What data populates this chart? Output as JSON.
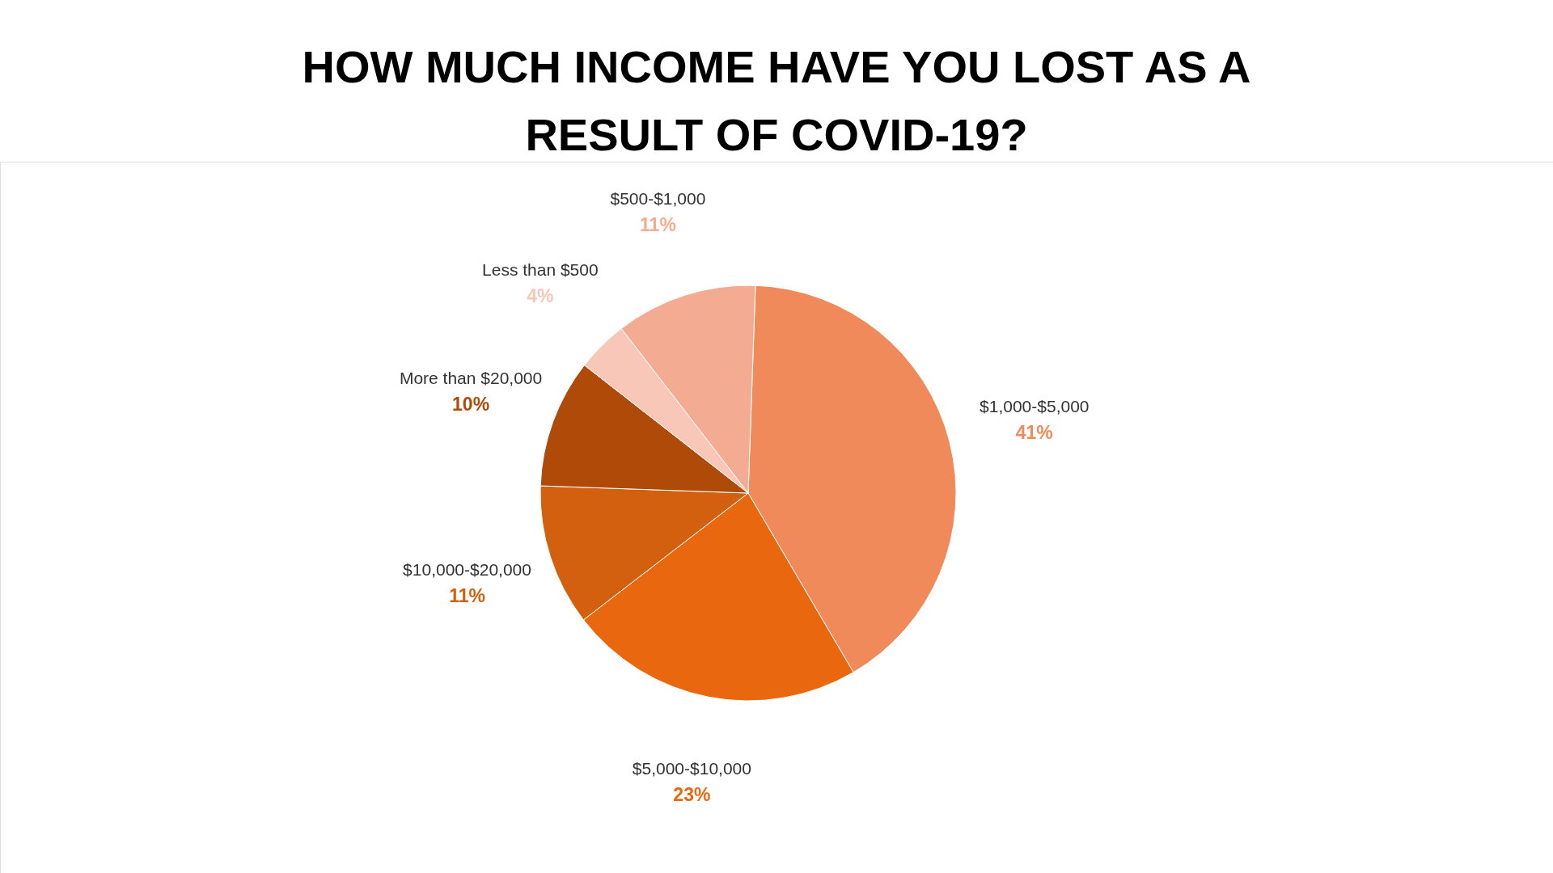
{
  "chart_data": {
    "type": "pie",
    "title": "HOW MUCH INCOME HAVE YOU LOST AS A RESULT OF COVID-19?",
    "categories": [
      "$1,000-$5,000",
      "$5,000-$10,000",
      "$10,000-$20,000",
      "More than $20,000",
      "Less than $500",
      "$500-$1,000"
    ],
    "values": [
      41,
      23,
      11,
      10,
      4,
      11
    ],
    "value_labels": [
      "41%",
      "23%",
      "11%",
      "10%",
      "4%",
      "11%"
    ],
    "colors": [
      "#f08a5a",
      "#e9680f",
      "#d2600f",
      "#b04a08",
      "#f8c7b7",
      "#f3ab92"
    ]
  }
}
